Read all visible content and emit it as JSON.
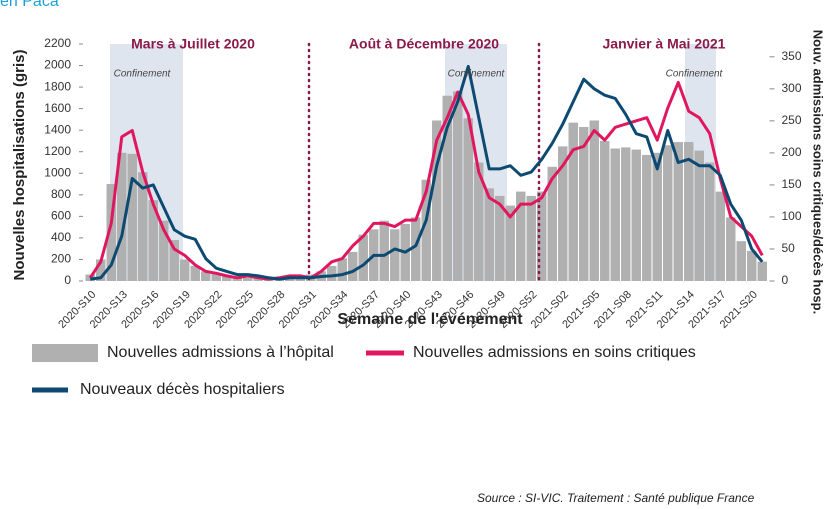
{
  "chart_data": {
    "type": "combo",
    "corner_text": "en Paca",
    "xlabel": "Semaine de l'événement",
    "ylabel": "Nouvelles hospitalisations (gris)",
    "y2label": "Nouv. admissions soins critiques/décès hosp.",
    "source": "Source : SI-VIC. Traitement : Santé publique France",
    "periods": [
      "Mars à Juillet 2020",
      "Août à Décembre 2020",
      "Janvier à Mai 2021"
    ],
    "lockdown_labels": [
      "Confinement",
      "Confinement",
      "Confinement"
    ],
    "categories": [
      "2020-S10",
      null,
      null,
      "2020-S13",
      null,
      null,
      "2020-S16",
      null,
      null,
      "2020-S19",
      null,
      null,
      "2020-S22",
      null,
      null,
      "2020-S25",
      null,
      null,
      "2020-S28",
      null,
      null,
      "2020-S31",
      null,
      null,
      "2020-S34",
      null,
      null,
      "2020-S37",
      null,
      null,
      "2020-S40",
      null,
      null,
      "2020-S43",
      null,
      null,
      "2020-S46",
      null,
      null,
      "2020-S49",
      null,
      null,
      "2020-S52",
      null,
      null,
      "2021-S02",
      null,
      null,
      "2021-S05",
      null,
      null,
      "2021-S08",
      null,
      null,
      "2021-S11",
      null,
      null,
      "2021-S14",
      null,
      null,
      "2021-S17",
      null,
      null,
      "2021-S20",
      null
    ],
    "ylim": [
      0,
      2200
    ],
    "yticks": [
      0,
      200,
      400,
      600,
      800,
      1000,
      1200,
      1400,
      1600,
      1800,
      2000,
      2200
    ],
    "y2lim": [
      0,
      370
    ],
    "y2ticks": [
      0,
      50,
      100,
      150,
      200,
      250,
      300,
      350
    ],
    "series": [
      {
        "name": "Nouvelles admissions à l’hôpital",
        "type": "bar",
        "color": "#b0b0b0",
        "values": [
          60,
          200,
          900,
          1190,
          1180,
          1010,
          750,
          560,
          380,
          200,
          140,
          90,
          70,
          50,
          40,
          30,
          30,
          20,
          25,
          30,
          40,
          60,
          90,
          140,
          210,
          270,
          430,
          480,
          560,
          480,
          530,
          590,
          940,
          1490,
          1720,
          1760,
          1510,
          1100,
          860,
          790,
          700,
          830,
          790,
          830,
          1060,
          1250,
          1470,
          1430,
          1490,
          1300,
          1230,
          1240,
          1220,
          1170,
          1190,
          1260,
          1290,
          1290,
          1210,
          1100,
          830,
          590,
          370,
          280,
          180
        ]
      },
      {
        "name": "Nouvelles admissions en soins critiques",
        "type": "line",
        "axis": "y2",
        "color": "#e0175f",
        "values": [
          5,
          30,
          90,
          225,
          235,
          170,
          120,
          80,
          50,
          40,
          25,
          15,
          12,
          8,
          5,
          8,
          5,
          3,
          5,
          8,
          8,
          5,
          15,
          30,
          35,
          55,
          70,
          90,
          90,
          85,
          95,
          95,
          140,
          220,
          255,
          295,
          260,
          170,
          130,
          120,
          100,
          120,
          120,
          130,
          160,
          180,
          205,
          210,
          235,
          220,
          240,
          245,
          250,
          255,
          220,
          270,
          310,
          265,
          255,
          230,
          160,
          100,
          85,
          70,
          40
        ]
      },
      {
        "name": "Nouveaux décès hospitaliers",
        "type": "line",
        "axis": "y2",
        "color": "#0d4a72",
        "values": [
          3,
          5,
          25,
          70,
          160,
          145,
          150,
          115,
          80,
          70,
          65,
          35,
          20,
          15,
          10,
          10,
          8,
          5,
          3,
          5,
          5,
          5,
          7,
          8,
          10,
          15,
          25,
          40,
          40,
          50,
          45,
          55,
          95,
          180,
          240,
          280,
          335,
          255,
          175,
          175,
          180,
          165,
          170,
          190,
          215,
          245,
          280,
          315,
          300,
          290,
          285,
          260,
          230,
          225,
          175,
          235,
          185,
          190,
          180,
          180,
          165,
          120,
          95,
          50,
          30
        ]
      }
    ]
  }
}
